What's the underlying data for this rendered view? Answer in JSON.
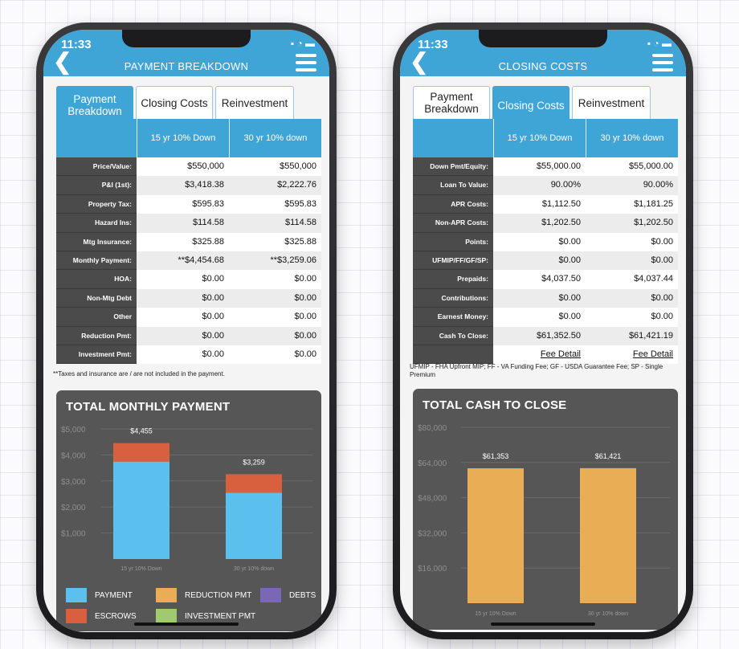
{
  "left": {
    "status_time": "11:33",
    "status_icons": "▪ ◔ ▬",
    "title": "PAYMENT BREAKDOWN",
    "tabs": [
      {
        "label": "Payment Breakdown"
      },
      {
        "label": "Closing Costs"
      },
      {
        "label": "Reinvestment"
      }
    ],
    "columns": [
      "15 yr 10% Down",
      "30 yr 10% down"
    ],
    "rows": [
      {
        "label": "Price/Value:",
        "v1": "$550,000",
        "v2": "$550,000"
      },
      {
        "label": "P&I (1st):",
        "v1": "$3,418.38",
        "v2": "$2,222.76"
      },
      {
        "label": "Property Tax:",
        "v1": "$595.83",
        "v2": "$595.83"
      },
      {
        "label": "Hazard Ins:",
        "v1": "$114.58",
        "v2": "$114.58"
      },
      {
        "label": "Mtg Insurance:",
        "v1": "$325.88",
        "v2": "$325.88"
      },
      {
        "label": "Monthly Payment:",
        "v1": "**$4,454.68",
        "v2": "**$3,259.06"
      },
      {
        "label": "HOA:",
        "v1": "$0.00",
        "v2": "$0.00"
      },
      {
        "label": "Non-Mtg Debt",
        "v1": "$0.00",
        "v2": "$0.00"
      },
      {
        "label": "Other",
        "v1": "$0.00",
        "v2": "$0.00"
      },
      {
        "label": "Reduction Pmt:",
        "v1": "$0.00",
        "v2": "$0.00"
      },
      {
        "label": "Investment Pmt:",
        "v1": "$0.00",
        "v2": "$0.00"
      }
    ],
    "footnote": "**Taxes and insurance are / are not included in the payment.",
    "chart_title": "TOTAL MONTHLY PAYMENT",
    "legend": [
      {
        "label": "PAYMENT",
        "color": "#5bc0ee"
      },
      {
        "label": "REDUCTION PMT",
        "color": "#e9ad55"
      },
      {
        "label": "DEBTS",
        "color": "#7b68b5"
      },
      {
        "label": "ESCROWS",
        "color": "#d9603f"
      },
      {
        "label": "INVESTMENT PMT",
        "color": "#9fcb6e"
      }
    ]
  },
  "right": {
    "status_time": "11:33",
    "status_icons": "▪ ◔ ▬",
    "title": "CLOSING COSTS",
    "tabs": [
      {
        "label": "Payment Breakdown"
      },
      {
        "label": "Closing Costs"
      },
      {
        "label": "Reinvestment"
      }
    ],
    "columns": [
      "15 yr 10% Down",
      "30 yr 10% down"
    ],
    "rows": [
      {
        "label": "Down Pmt/Equity:",
        "v1": "$55,000.00",
        "v2": "$55,000.00"
      },
      {
        "label": "Loan To Value:",
        "v1": "90.00%",
        "v2": "90.00%"
      },
      {
        "label": "APR Costs:",
        "v1": "$1,112.50",
        "v2": "$1,181.25"
      },
      {
        "label": "Non-APR Costs:",
        "v1": "$1,202.50",
        "v2": "$1,202.50"
      },
      {
        "label": "Points:",
        "v1": "$0.00",
        "v2": "$0.00"
      },
      {
        "label": "UFMIP/FF/GF/SP:",
        "v1": "$0.00",
        "v2": "$0.00"
      },
      {
        "label": "Prepaids:",
        "v1": "$4,037.50",
        "v2": "$4,037.44"
      },
      {
        "label": "Contributions:",
        "v1": "$0.00",
        "v2": "$0.00"
      },
      {
        "label": "Earnest Money:",
        "v1": "$0.00",
        "v2": "$0.00"
      },
      {
        "label": "Cash To Close:",
        "v1": "$61,352.50",
        "v2": "$61,421.19"
      },
      {
        "label": "",
        "v1": "Fee Detail",
        "v2": "Fee Detail"
      }
    ],
    "footnote": "UFMIP - FHA Upfront MIP; FF - VA Funding Fee; GF - USDA Guarantee Fee; SP - Single Premium",
    "chart_title": "TOTAL CASH TO CLOSE"
  },
  "chart_data": [
    {
      "type": "bar",
      "stacked": true,
      "title": "TOTAL MONTHLY PAYMENT",
      "categories": [
        "15 yr 10% Down",
        "30 yr 10% down"
      ],
      "series": [
        {
          "name": "PAYMENT",
          "values": [
            3744.21,
            2548.59
          ],
          "color": "#5bc0ee"
        },
        {
          "name": "ESCROWS",
          "values": [
            710.41,
            710.41
          ],
          "color": "#d9603f"
        }
      ],
      "totals_labels": [
        "$4,455",
        "$3,259"
      ],
      "totals": [
        4455,
        3259
      ],
      "yticks": [
        "$5,000",
        "$4,000",
        "$3,000",
        "$2,000",
        "$1,000"
      ],
      "ylim": [
        0,
        5000
      ]
    },
    {
      "type": "bar",
      "title": "TOTAL CASH TO CLOSE",
      "categories": [
        "15 yr 10% Down",
        "30 yr 10% down"
      ],
      "values": [
        61353,
        61421
      ],
      "value_labels": [
        "$61,353",
        "$61,421"
      ],
      "color": "#e9ad55",
      "yticks": [
        "$80,000",
        "$64,000",
        "$48,000",
        "$32,000",
        "$16,000"
      ],
      "ylim": [
        0,
        80000
      ]
    }
  ]
}
